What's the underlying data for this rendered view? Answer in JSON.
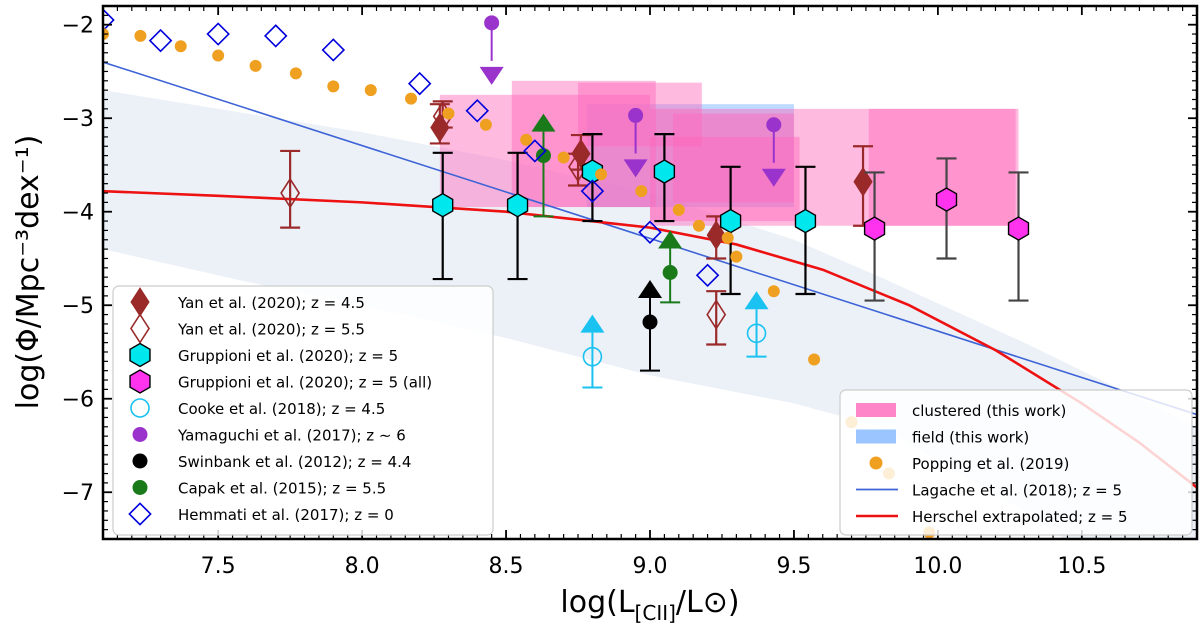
{
  "chart_data": {
    "type": "scatter",
    "xlabel": "log(L",
    "xlabel_sub": "[CII]",
    "xlabel_end": "/L⊙)",
    "ylabel": "log(Φ/Mpc⁻³dex⁻¹)",
    "xlim": [
      7.1,
      10.9
    ],
    "ylim": [
      -7.5,
      -1.8
    ],
    "xticks": [
      "7.5",
      "8.0",
      "8.5",
      "9.0",
      "9.5",
      "10.0",
      "10.5"
    ],
    "yticks": [
      "−2",
      "−3",
      "−4",
      "−5",
      "−6",
      "−7"
    ],
    "xtick_values": [
      7.5,
      8.0,
      8.5,
      9.0,
      9.5,
      10.0,
      10.5
    ],
    "ytick_values": [
      -2,
      -3,
      -4,
      -5,
      -6,
      -7
    ],
    "grid": false,
    "colors": {
      "yan": "#9a2a2a",
      "gruppioni": "#00e8ee",
      "gruppioni_all": "#ff33ee",
      "cooke": "#19c2f0",
      "yamaguchi": "#9933cc",
      "swinbank": "#000000",
      "capak": "#1a7a1a",
      "hemmati": "#0000dd",
      "popping": "#f0a020",
      "lagache": "#3d63d6",
      "herschel": "#ee1111",
      "clustered": "#ff66bb",
      "field": "#88bbff"
    },
    "clustered_boxes": [
      {
        "x0": 8.27,
        "x1": 9.0,
        "y0": -3.95,
        "y1": -2.75
      },
      {
        "x0": 8.52,
        "x1": 9.02,
        "y0": -3.95,
        "y1": -2.6
      },
      {
        "x0": 8.75,
        "x1": 9.18,
        "y0": -3.3,
        "y1": -2.62
      },
      {
        "x0": 9.08,
        "x1": 9.5,
        "y0": -3.9,
        "y1": -2.95
      },
      {
        "x0": 9.0,
        "x1": 9.52,
        "y0": -4.1,
        "y1": -2.9
      },
      {
        "x0": 9.52,
        "x1": 10.03,
        "y0": -4.15,
        "y1": -2.9
      },
      {
        "x0": 9.76,
        "x1": 10.27,
        "y0": -4.15,
        "y1": -2.9
      },
      {
        "x0": 10.03,
        "x1": 10.28,
        "y0": -4.15,
        "y1": -2.9
      },
      {
        "x0": 9.0,
        "x1": 9.52,
        "y0": -4.15,
        "y1": -3.2
      }
    ],
    "field_boxes": [
      {
        "x0": 8.78,
        "x1": 9.5,
        "y0": -3.95,
        "y1": -2.85
      }
    ],
    "lagache_band": {
      "x": [
        7.1,
        7.6,
        8.0,
        8.5,
        9.0,
        9.5,
        9.8,
        10.3,
        10.9
      ],
      "upper": [
        -2.7,
        -2.95,
        -3.15,
        -3.45,
        -3.8,
        -4.3,
        -4.7,
        -5.4,
        -6.3
      ],
      "lower": [
        -4.4,
        -4.75,
        -5.0,
        -5.35,
        -5.75,
        -6.05,
        -6.3,
        -7.2,
        -8.5
      ]
    },
    "series": [
      {
        "name": "Yan et al. (2020); z = 4.5",
        "marker": "diamond-filled",
        "color_key": "yan",
        "points": [
          {
            "x": 8.27,
            "y": -3.1,
            "lo": -3.27,
            "hi": -2.85
          },
          {
            "x": 8.76,
            "y": -3.38,
            "lo": -3.55,
            "hi": -3.18
          },
          {
            "x": 9.23,
            "y": -4.25,
            "lo": -4.5,
            "hi": -4.05
          },
          {
            "x": 9.74,
            "y": -3.68,
            "lo": -4.15,
            "hi": -3.3
          }
        ]
      },
      {
        "name": "Yan et al. (2020); z = 5.5",
        "marker": "diamond-open",
        "color_key": "yan",
        "points": [
          {
            "x": 7.75,
            "y": -3.8,
            "lo": -4.17,
            "hi": -3.35
          },
          {
            "x": 8.28,
            "y": -2.98,
            "lo": -3.1,
            "hi": -2.82
          },
          {
            "x": 8.75,
            "y": -3.52,
            "lo": -3.72,
            "hi": -3.38
          },
          {
            "x": 9.23,
            "y": -5.1,
            "lo": -5.42,
            "hi": -4.85
          }
        ]
      },
      {
        "name": "Gruppioni et al. (2020); z = 5",
        "marker": "hexagon",
        "color_key": "gruppioni",
        "points": [
          {
            "x": 8.28,
            "y": -3.93,
            "lo": -4.72,
            "hi": -3.37
          },
          {
            "x": 8.54,
            "y": -3.93,
            "lo": -4.72,
            "hi": -3.37
          },
          {
            "x": 8.8,
            "y": -3.57,
            "lo": -4.1,
            "hi": -3.17
          },
          {
            "x": 9.05,
            "y": -3.57,
            "lo": -4.1,
            "hi": -3.17
          },
          {
            "x": 9.28,
            "y": -4.1,
            "lo": -4.88,
            "hi": -3.52
          },
          {
            "x": 9.54,
            "y": -4.1,
            "lo": -4.88,
            "hi": -3.52
          }
        ]
      },
      {
        "name": "Gruppioni et al. (2020); z = 5 (all)",
        "marker": "hexagon",
        "color_key": "gruppioni_all",
        "points": [
          {
            "x": 9.78,
            "y": -4.18,
            "lo": -4.95,
            "hi": -3.58
          },
          {
            "x": 10.03,
            "y": -3.87,
            "lo": -4.5,
            "hi": -3.43
          },
          {
            "x": 10.28,
            "y": -4.18,
            "lo": -4.95,
            "hi": -3.58
          }
        ]
      },
      {
        "name": "Cooke et al. (2018); z = 4.5",
        "marker": "circle-open",
        "color_key": "cooke",
        "points": [
          {
            "x": 8.8,
            "y": -5.55,
            "lo": -5.88,
            "arrow": "up"
          },
          {
            "x": 9.37,
            "y": -5.3,
            "lo": -5.55,
            "arrow": "up"
          }
        ]
      },
      {
        "name": "Yamaguchi et al. (2017); z ∼ 6",
        "marker": "circle-filled",
        "color_key": "yamaguchi",
        "points": [
          {
            "x": 8.45,
            "y": -1.98,
            "arrow": "down"
          },
          {
            "x": 8.95,
            "y": -2.97,
            "arrow": "down"
          },
          {
            "x": 9.43,
            "y": -3.07,
            "arrow": "down"
          }
        ]
      },
      {
        "name": "Swinbank et al. (2012); z = 4.4",
        "marker": "circle-filled",
        "color_key": "swinbank",
        "points": [
          {
            "x": 9.0,
            "y": -5.18,
            "lo": -5.7,
            "arrow": "up"
          }
        ]
      },
      {
        "name": "Capak et al. (2015); z = 5.5",
        "marker": "circle-filled",
        "color_key": "capak",
        "points": [
          {
            "x": 8.63,
            "y": -3.4,
            "lo": -4.05,
            "arrow": "up"
          },
          {
            "x": 9.07,
            "y": -4.65,
            "lo": -4.97,
            "arrow": "up"
          }
        ]
      },
      {
        "name": "Hemmati et al. (2017); z = 0",
        "marker": "diamond-open",
        "color_key": "hemmati",
        "points": [
          {
            "x": 7.1,
            "y": -1.95
          },
          {
            "x": 7.3,
            "y": -2.17
          },
          {
            "x": 7.5,
            "y": -2.1
          },
          {
            "x": 7.7,
            "y": -2.12
          },
          {
            "x": 7.9,
            "y": -2.27
          },
          {
            "x": 8.2,
            "y": -2.63
          },
          {
            "x": 8.4,
            "y": -2.92
          },
          {
            "x": 8.6,
            "y": -3.35
          },
          {
            "x": 8.8,
            "y": -3.78
          },
          {
            "x": 9.0,
            "y": -4.22
          },
          {
            "x": 9.2,
            "y": -4.68
          }
        ]
      },
      {
        "name": "Popping et al. (2019)",
        "marker": "circle-filled",
        "color_key": "popping",
        "points": [
          {
            "x": 7.1,
            "y": -2.1
          },
          {
            "x": 7.23,
            "y": -2.12
          },
          {
            "x": 7.37,
            "y": -2.23
          },
          {
            "x": 7.5,
            "y": -2.33
          },
          {
            "x": 7.63,
            "y": -2.44
          },
          {
            "x": 7.77,
            "y": -2.52
          },
          {
            "x": 7.9,
            "y": -2.66
          },
          {
            "x": 8.03,
            "y": -2.7
          },
          {
            "x": 8.17,
            "y": -2.79
          },
          {
            "x": 8.3,
            "y": -2.95
          },
          {
            "x": 8.43,
            "y": -3.07
          },
          {
            "x": 8.57,
            "y": -3.23
          },
          {
            "x": 8.7,
            "y": -3.42
          },
          {
            "x": 8.83,
            "y": -3.6
          },
          {
            "x": 8.97,
            "y": -3.78
          },
          {
            "x": 9.1,
            "y": -3.98
          },
          {
            "x": 9.17,
            "y": -4.15
          },
          {
            "x": 9.27,
            "y": -4.28
          },
          {
            "x": 9.3,
            "y": -4.48
          },
          {
            "x": 9.43,
            "y": -4.85
          },
          {
            "x": 9.57,
            "y": -5.58
          },
          {
            "x": 9.7,
            "y": -6.25
          },
          {
            "x": 9.83,
            "y": -6.8
          },
          {
            "x": 9.97,
            "y": -7.43
          }
        ]
      }
    ],
    "lines": [
      {
        "name": "Lagache et al. (2018); z = 5",
        "color_key": "lagache",
        "x": [
          7.1,
          10.9
        ],
        "y": [
          -2.4,
          -6.17
        ]
      },
      {
        "name": "Herschel extrapolated; z = 5",
        "color_key": "herschel",
        "x": [
          7.1,
          7.5,
          8.0,
          8.5,
          9.0,
          9.3,
          9.6,
          9.9,
          10.2,
          10.5,
          10.7,
          10.9
        ],
        "y": [
          -3.78,
          -3.83,
          -3.9,
          -4.0,
          -4.17,
          -4.35,
          -4.62,
          -5.0,
          -5.48,
          -6.05,
          -6.47,
          -6.95
        ]
      }
    ],
    "legend_left": [
      "Yan et al. (2020); z = 4.5",
      "Yan et al. (2020); z = 5.5",
      "Gruppioni et al. (2020); z = 5",
      "Gruppioni et al. (2020); z = 5 (all)",
      "Cooke et al. (2018); z = 4.5",
      "Yamaguchi et al. (2017); z ∼ 6",
      "Swinbank et al. (2012); z = 4.4",
      "Capak et al. (2015); z = 5.5",
      "Hemmati et al. (2017); z = 0"
    ],
    "legend_right": [
      "clustered (this work)",
      "field (this work)",
      "Popping et al. (2019)",
      "Lagache et al. (2018); z = 5",
      "Herschel extrapolated; z = 5"
    ],
    "legend_left_placement": "lower-left",
    "legend_right_placement": "lower-right"
  }
}
